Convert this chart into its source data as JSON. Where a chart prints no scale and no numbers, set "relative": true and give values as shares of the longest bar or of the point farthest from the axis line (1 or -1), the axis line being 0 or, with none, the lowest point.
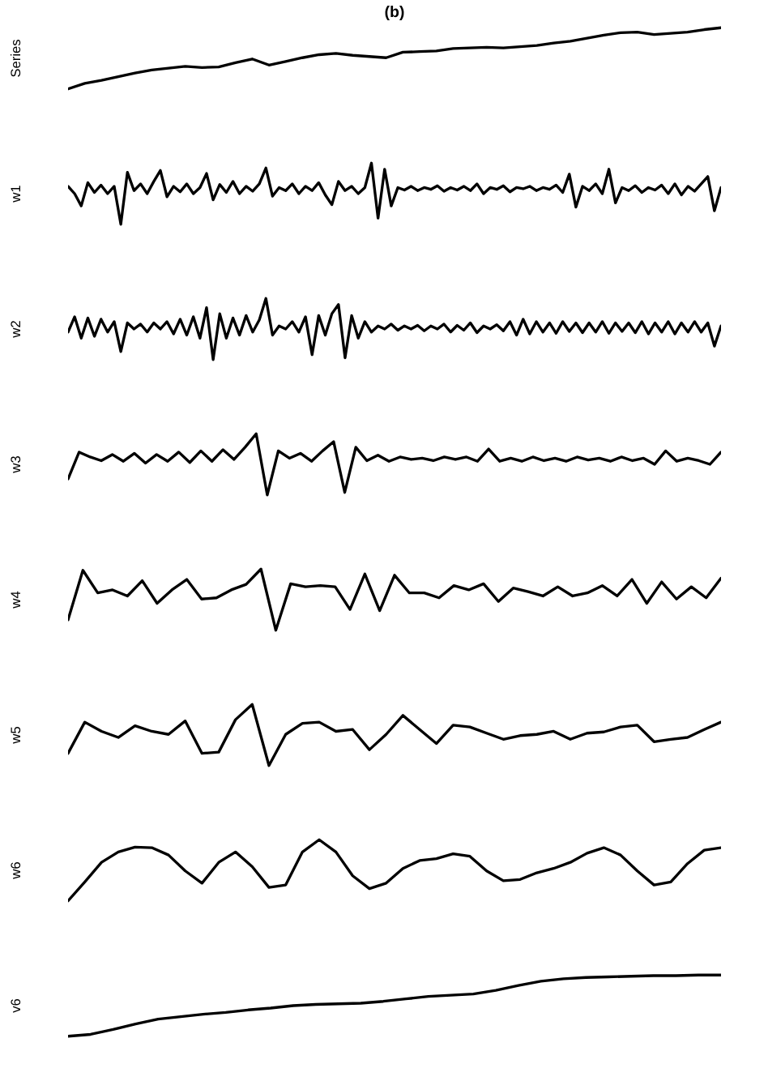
{
  "chart_data": [
    {
      "type": "line",
      "title": "(b)",
      "ylabel": "Series",
      "relative": true,
      "color": "#000000",
      "categories": [
        null,
        null,
        null,
        null,
        null,
        null,
        null,
        null,
        null,
        null,
        null,
        null,
        null,
        null,
        null,
        null,
        null,
        null,
        null,
        null,
        null,
        null,
        null,
        null,
        null,
        null,
        null,
        null,
        null,
        null,
        null,
        null,
        null,
        null,
        null,
        null,
        null,
        null,
        null,
        null
      ],
      "values": [
        0,
        0.09,
        0.14,
        0.2,
        0.26,
        0.31,
        0.34,
        0.37,
        0.35,
        0.36,
        0.43,
        0.49,
        0.39,
        0.45,
        0.51,
        0.56,
        0.58,
        0.55,
        0.53,
        0.51,
        0.6,
        0.61,
        0.62,
        0.66,
        0.67,
        0.68,
        0.67,
        0.69,
        0.71,
        0.75,
        0.78,
        0.83,
        0.88,
        0.92,
        0.93,
        0.89,
        0.91,
        0.93,
        0.97,
        1
      ]
    },
    {
      "type": "line",
      "ylabel": "w1",
      "relative": true,
      "color": "#000000",
      "categories": [
        null,
        null,
        null,
        null,
        null,
        null,
        null,
        null,
        null,
        null,
        null,
        null,
        null,
        null,
        null,
        null,
        null,
        null,
        null,
        null,
        null,
        null,
        null,
        null,
        null,
        null,
        null,
        null,
        null,
        null,
        null,
        null,
        null,
        null,
        null,
        null,
        null,
        null,
        null,
        null,
        null,
        null,
        null,
        null,
        null,
        null,
        null,
        null,
        null,
        null,
        null,
        null,
        null,
        null,
        null,
        null,
        null,
        null,
        null,
        null,
        null,
        null,
        null,
        null,
        null,
        null,
        null,
        null,
        null,
        null,
        null,
        null,
        null,
        null,
        null,
        null,
        null,
        null,
        null,
        null,
        null,
        null,
        null,
        null,
        null,
        null,
        null,
        null,
        null,
        null,
        null,
        null,
        null,
        null,
        null,
        null,
        null,
        null,
        null,
        null
      ],
      "values": [
        0.62,
        0.5,
        0.3,
        0.68,
        0.52,
        0.64,
        0.5,
        0.62,
        0,
        0.85,
        0.55,
        0.66,
        0.5,
        0.7,
        0.88,
        0.45,
        0.62,
        0.53,
        0.66,
        0.5,
        0.6,
        0.83,
        0.4,
        0.65,
        0.52,
        0.7,
        0.5,
        0.62,
        0.54,
        0.66,
        0.92,
        0.46,
        0.6,
        0.55,
        0.66,
        0.5,
        0.62,
        0.55,
        0.68,
        0.48,
        0.32,
        0.7,
        0.55,
        0.62,
        0.5,
        0.6,
        1,
        0.1,
        0.9,
        0.3,
        0.6,
        0.56,
        0.62,
        0.55,
        0.6,
        0.57,
        0.63,
        0.54,
        0.6,
        0.56,
        0.62,
        0.55,
        0.66,
        0.5,
        0.6,
        0.57,
        0.63,
        0.53,
        0.6,
        0.58,
        0.62,
        0.55,
        0.6,
        0.57,
        0.64,
        0.52,
        0.82,
        0.28,
        0.62,
        0.55,
        0.66,
        0.5,
        0.9,
        0.35,
        0.6,
        0.55,
        0.63,
        0.52,
        0.6,
        0.56,
        0.64,
        0.5,
        0.66,
        0.48,
        0.62,
        0.54,
        0.66,
        0.78,
        0.22,
        0.6
      ]
    },
    {
      "type": "line",
      "ylabel": "w2",
      "relative": true,
      "color": "#000000",
      "categories": [
        null,
        null,
        null,
        null,
        null,
        null,
        null,
        null,
        null,
        null,
        null,
        null,
        null,
        null,
        null,
        null,
        null,
        null,
        null,
        null,
        null,
        null,
        null,
        null,
        null,
        null,
        null,
        null,
        null,
        null,
        null,
        null,
        null,
        null,
        null,
        null,
        null,
        null,
        null,
        null,
        null,
        null,
        null,
        null,
        null,
        null,
        null,
        null,
        null,
        null,
        null,
        null,
        null,
        null,
        null,
        null,
        null,
        null,
        null,
        null,
        null,
        null,
        null,
        null,
        null,
        null,
        null,
        null,
        null,
        null,
        null,
        null,
        null,
        null,
        null,
        null,
        null,
        null,
        null,
        null,
        null,
        null,
        null,
        null,
        null,
        null,
        null,
        null,
        null,
        null,
        null,
        null,
        null,
        null,
        null,
        null,
        null,
        null,
        null,
        null
      ],
      "values": [
        0.45,
        0.7,
        0.35,
        0.68,
        0.38,
        0.66,
        0.45,
        0.62,
        0.13,
        0.6,
        0.5,
        0.58,
        0.45,
        0.6,
        0.5,
        0.62,
        0.42,
        0.66,
        0.4,
        0.7,
        0.35,
        0.85,
        0,
        0.75,
        0.35,
        0.68,
        0.4,
        0.72,
        0.45,
        0.65,
        1,
        0.4,
        0.55,
        0.5,
        0.62,
        0.45,
        0.7,
        0.08,
        0.72,
        0.4,
        0.75,
        0.9,
        0.03,
        0.72,
        0.35,
        0.62,
        0.45,
        0.55,
        0.5,
        0.58,
        0.48,
        0.55,
        0.5,
        0.56,
        0.47,
        0.55,
        0.5,
        0.58,
        0.45,
        0.56,
        0.48,
        0.6,
        0.44,
        0.55,
        0.5,
        0.57,
        0.47,
        0.62,
        0.4,
        0.66,
        0.42,
        0.62,
        0.45,
        0.6,
        0.43,
        0.62,
        0.46,
        0.6,
        0.44,
        0.6,
        0.45,
        0.62,
        0.43,
        0.6,
        0.46,
        0.6,
        0.44,
        0.62,
        0.42,
        0.6,
        0.45,
        0.62,
        0.42,
        0.6,
        0.45,
        0.62,
        0.45,
        0.6,
        0.22,
        0.55
      ]
    },
    {
      "type": "line",
      "ylabel": "w3",
      "relative": true,
      "color": "#000000",
      "categories": [
        null,
        null,
        null,
        null,
        null,
        null,
        null,
        null,
        null,
        null,
        null,
        null,
        null,
        null,
        null,
        null,
        null,
        null,
        null,
        null,
        null,
        null,
        null,
        null,
        null,
        null,
        null,
        null,
        null,
        null,
        null,
        null,
        null,
        null,
        null,
        null,
        null,
        null,
        null,
        null,
        null,
        null,
        null,
        null,
        null,
        null,
        null,
        null,
        null,
        null,
        null,
        null,
        null,
        null,
        null,
        null,
        null,
        null,
        null,
        null
      ],
      "values": [
        0.26,
        0.7,
        0.62,
        0.56,
        0.66,
        0.55,
        0.68,
        0.52,
        0.66,
        0.55,
        0.7,
        0.53,
        0.72,
        0.55,
        0.74,
        0.58,
        0.78,
        1,
        0,
        0.72,
        0.6,
        0.68,
        0.55,
        0.72,
        0.87,
        0.04,
        0.78,
        0.56,
        0.65,
        0.55,
        0.62,
        0.58,
        0.6,
        0.56,
        0.62,
        0.58,
        0.62,
        0.55,
        0.75,
        0.55,
        0.6,
        0.55,
        0.62,
        0.56,
        0.6,
        0.55,
        0.62,
        0.57,
        0.6,
        0.55,
        0.62,
        0.56,
        0.6,
        0.5,
        0.72,
        0.55,
        0.6,
        0.56,
        0.5,
        0.7
      ]
    },
    {
      "type": "line",
      "ylabel": "w4",
      "relative": true,
      "color": "#000000",
      "categories": [
        null,
        null,
        null,
        null,
        null,
        null,
        null,
        null,
        null,
        null,
        null,
        null,
        null,
        null,
        null,
        null,
        null,
        null,
        null,
        null,
        null,
        null,
        null,
        null,
        null,
        null,
        null,
        null,
        null,
        null,
        null,
        null,
        null,
        null,
        null,
        null,
        null,
        null,
        null,
        null,
        null,
        null,
        null,
        null,
        null
      ],
      "values": [
        0.17,
        0.98,
        0.61,
        0.66,
        0.56,
        0.81,
        0.44,
        0.66,
        0.83,
        0.51,
        0.53,
        0.66,
        0.75,
        1,
        0,
        0.76,
        0.71,
        0.73,
        0.71,
        0.34,
        0.92,
        0.32,
        0.9,
        0.61,
        0.61,
        0.53,
        0.73,
        0.66,
        0.76,
        0.47,
        0.69,
        0.63,
        0.56,
        0.71,
        0.56,
        0.61,
        0.73,
        0.56,
        0.83,
        0.44,
        0.79,
        0.51,
        0.71,
        0.53,
        0.85
      ]
    },
    {
      "type": "line",
      "ylabel": "w5",
      "relative": true,
      "color": "#000000",
      "categories": [
        null,
        null,
        null,
        null,
        null,
        null,
        null,
        null,
        null,
        null,
        null,
        null,
        null,
        null,
        null,
        null,
        null,
        null,
        null,
        null,
        null,
        null,
        null,
        null,
        null,
        null,
        null,
        null,
        null,
        null,
        null,
        null,
        null,
        null,
        null,
        null,
        null,
        null,
        null,
        null
      ],
      "values": [
        0.2,
        0.71,
        0.56,
        0.46,
        0.65,
        0.56,
        0.51,
        0.73,
        0.2,
        0.22,
        0.75,
        1,
        0,
        0.51,
        0.69,
        0.71,
        0.56,
        0.59,
        0.26,
        0.51,
        0.82,
        0.59,
        0.36,
        0.66,
        0.63,
        0.53,
        0.43,
        0.49,
        0.51,
        0.56,
        0.43,
        0.53,
        0.55,
        0.63,
        0.66,
        0.39,
        0.43,
        0.46,
        0.59,
        0.71
      ]
    },
    {
      "type": "line",
      "ylabel": "w6",
      "relative": true,
      "color": "#000000",
      "categories": [
        null,
        null,
        null,
        null,
        null,
        null,
        null,
        null,
        null,
        null,
        null,
        null,
        null,
        null,
        null,
        null,
        null,
        null,
        null,
        null,
        null,
        null,
        null,
        null,
        null,
        null,
        null,
        null,
        null,
        null,
        null,
        null,
        null,
        null,
        null,
        null,
        null,
        null,
        null,
        null
      ],
      "values": [
        0,
        0.31,
        0.63,
        0.8,
        0.88,
        0.87,
        0.75,
        0.49,
        0.29,
        0.63,
        0.8,
        0.56,
        0.22,
        0.26,
        0.8,
        1,
        0.8,
        0.41,
        0.2,
        0.29,
        0.53,
        0.66,
        0.69,
        0.77,
        0.73,
        0.49,
        0.33,
        0.35,
        0.46,
        0.53,
        0.63,
        0.78,
        0.87,
        0.75,
        0.49,
        0.26,
        0.31,
        0.61,
        0.83,
        0.87
      ]
    },
    {
      "type": "line",
      "ylabel": "v6",
      "relative": true,
      "color": "#000000",
      "categories": [
        null,
        null,
        null,
        null,
        null,
        null,
        null,
        null,
        null,
        null,
        null,
        null,
        null,
        null,
        null,
        null,
        null,
        null,
        null,
        null,
        null,
        null,
        null,
        null,
        null,
        null,
        null,
        null,
        null,
        null
      ],
      "values": [
        0,
        0.03,
        0.11,
        0.2,
        0.28,
        0.32,
        0.36,
        0.39,
        0.43,
        0.46,
        0.5,
        0.52,
        0.53,
        0.54,
        0.57,
        0.61,
        0.65,
        0.67,
        0.69,
        0.75,
        0.83,
        0.9,
        0.94,
        0.96,
        0.97,
        0.98,
        0.99,
        0.99,
        1,
        1
      ]
    }
  ]
}
